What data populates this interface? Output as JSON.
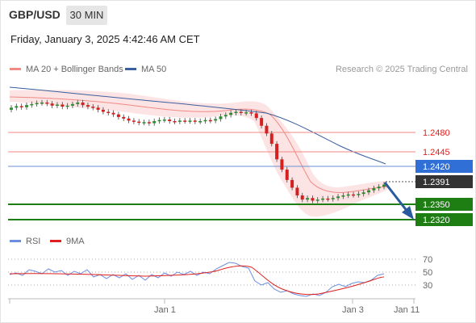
{
  "header": {
    "symbol": "GBP/USD",
    "timeframe": "30 MIN",
    "datetime": "Friday, January 3, 2025 4:42:46 AM CET"
  },
  "legend_top": {
    "items": [
      {
        "label": "MA 20 + Bollinger Bands",
        "color": "#f08a84"
      },
      {
        "label": "MA 50",
        "color": "#3a5f9e"
      }
    ],
    "credit": "Research © 2025 Trading Central"
  },
  "legend_rsi": {
    "items": [
      {
        "label": "RSI",
        "color": "#6b8ee0"
      },
      {
        "label": "9MA",
        "color": "#e02020"
      }
    ]
  },
  "levels": {
    "resistance_2": "1.2480",
    "resistance_1": "1.2445",
    "pivot": "1.2420",
    "last_price": "1.2391",
    "support_1": "1.2350",
    "support_2": "1.2320"
  },
  "rsi_axis": [
    "70",
    "50",
    "30"
  ],
  "x_axis": [
    "Jan 1",
    "Jan 3",
    "Jan 11"
  ],
  "colors": {
    "resistance": "#e02020",
    "pivot": "#2f6fd6",
    "support": "#1e7e14",
    "bollinger_fill": "#fde1e1",
    "candle_up": "#2e8b2e",
    "candle_down": "#d62020",
    "arrow": "#2a5a9e"
  },
  "chart_data": {
    "type": "candlestick",
    "ylim": [
      1.2295,
      1.26
    ],
    "candles_approx_close": [
      1.254,
      1.2543,
      1.2541,
      1.2545,
      1.2547,
      1.2549,
      1.255,
      1.2548,
      1.2544,
      1.2546,
      1.2542,
      1.2544,
      1.2547,
      1.255,
      1.2545,
      1.2542,
      1.254,
      1.2536,
      1.2532,
      1.253,
      1.2527,
      1.2522,
      1.2519,
      1.2515,
      1.2513,
      1.2511,
      1.2512,
      1.251,
      1.2514,
      1.2516,
      1.2517,
      1.2514,
      1.2513,
      1.2515,
      1.2514,
      1.2515,
      1.2513,
      1.2514,
      1.2516,
      1.2515,
      1.2518,
      1.2523,
      1.2526,
      1.253,
      1.2532,
      1.253,
      1.2531,
      1.2529,
      1.252,
      1.2505,
      1.249,
      1.247,
      1.244,
      1.242,
      1.24,
      1.2385,
      1.237,
      1.2362,
      1.2365,
      1.236,
      1.2362,
      1.2364,
      1.2363,
      1.2365,
      1.2368,
      1.237,
      1.2372,
      1.2371,
      1.2373,
      1.2376,
      1.238,
      1.2384,
      1.2387,
      1.2391
    ]
  }
}
